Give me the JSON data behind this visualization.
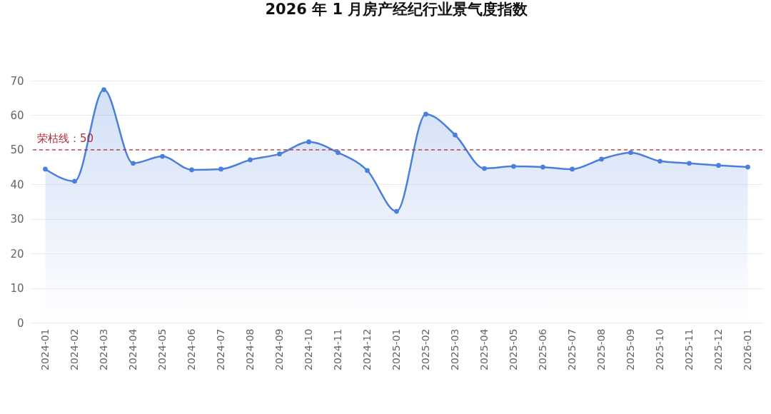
{
  "chart_data": {
    "type": "area",
    "title": "2026 年 1 月房产经纪行业景气度指数",
    "categories": [
      "2024-01",
      "2024-02",
      "2024-03",
      "2024-04",
      "2024-05",
      "2024-06",
      "2024-07",
      "2024-08",
      "2024-09",
      "2024-10",
      "2024-11",
      "2024-12",
      "2025-01",
      "2025-02",
      "2025-03",
      "2025-04",
      "2025-05",
      "2025-06",
      "2025-07",
      "2025-08",
      "2025-09",
      "2025-10",
      "2025-11",
      "2025-12",
      "2026-01"
    ],
    "series": [
      {
        "color": "#4a7fdd",
        "values": [
          44.4,
          40.9,
          67.4,
          46.1,
          48.1,
          44.2,
          44.4,
          47.1,
          48.8,
          52.3,
          49.2,
          44.0,
          32.2,
          60.3,
          54.3,
          44.6,
          45.2,
          45.0,
          44.4,
          47.3,
          49.2,
          46.7,
          46.1,
          45.5,
          45.0
        ]
      }
    ],
    "ylim": [
      0,
      70
    ],
    "yticks": [
      0,
      10,
      20,
      30,
      40,
      50,
      60,
      70
    ],
    "grid": "y",
    "marker": "circle",
    "line_style": "solid",
    "ref_lines": [
      {
        "axis": "y",
        "value": 50,
        "label": "荣枯线：50",
        "color": "#b22a3a",
        "line_style": "dashed"
      }
    ]
  }
}
